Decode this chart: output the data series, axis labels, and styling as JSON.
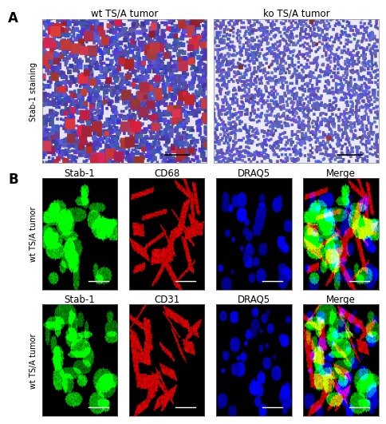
{
  "fig_width": 4.74,
  "fig_height": 5.32,
  "background_color": "#ffffff",
  "panel_A_label": "A",
  "panel_B_label": "B",
  "panel_A_col_labels": [
    "wt TS/A tumor",
    "ko TS/A tumor"
  ],
  "panel_A_row_label": "Stab-1 staining",
  "panel_B_row1_col_labels": [
    "Stab-1",
    "CD68",
    "DRAQ5",
    "Merge"
  ],
  "panel_B_row2_col_labels": [
    "Stab-1",
    "CD31",
    "DRAQ5",
    "Merge"
  ],
  "panel_B_row1_label": "wt TS/A tumor",
  "panel_B_row2_label": "wt TS/A tumor",
  "label_fontsize": 10,
  "col_label_fontsize": 8.5,
  "row_label_fontsize": 7,
  "scalebar_color": "#ffffff"
}
